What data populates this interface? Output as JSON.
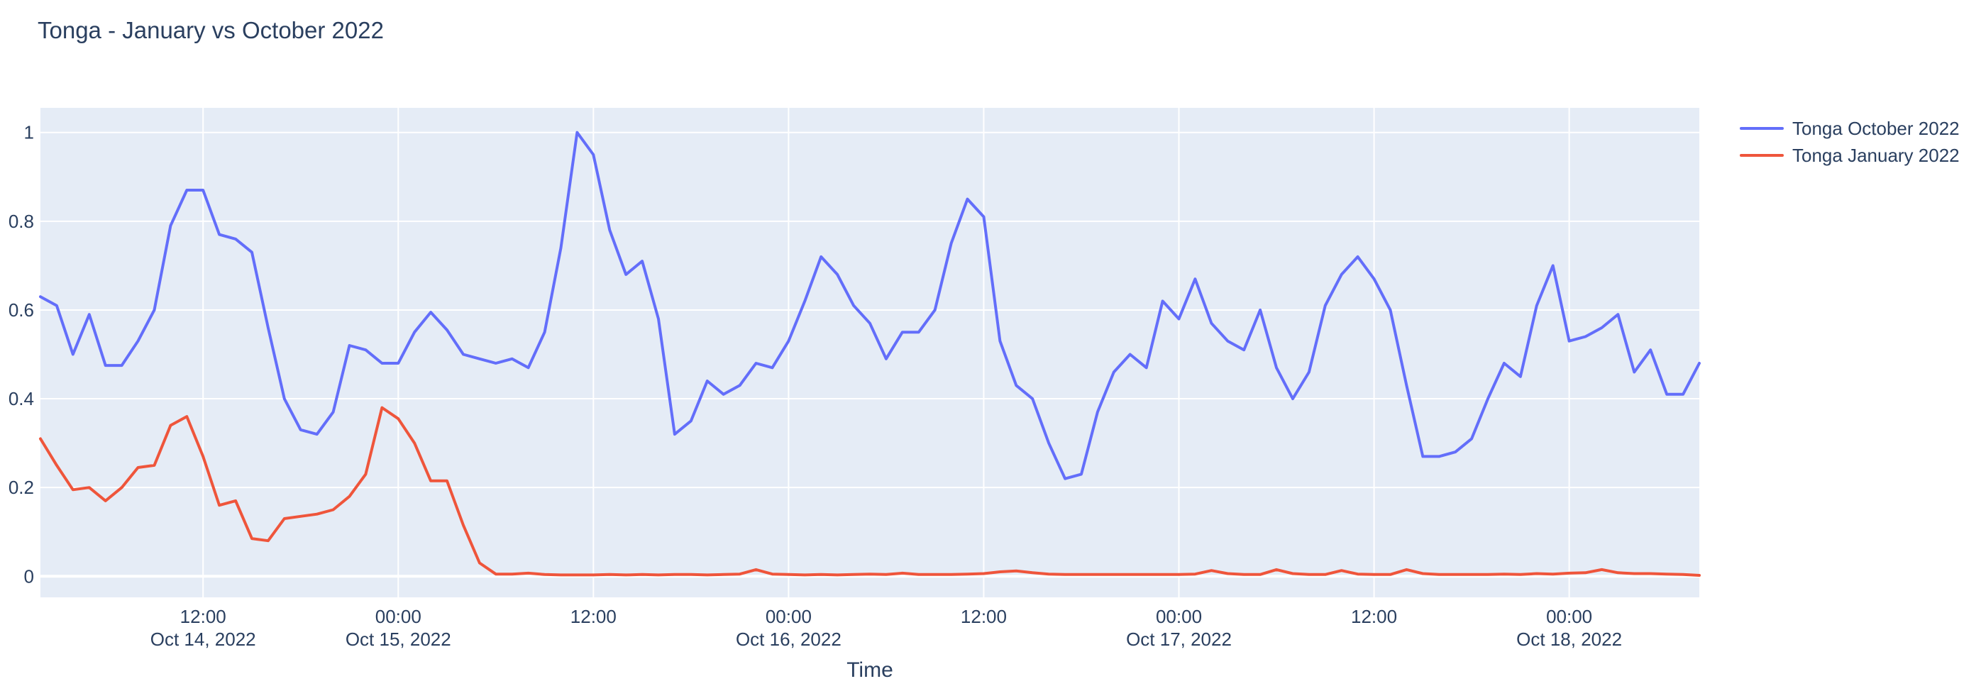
{
  "header": {
    "title": "Tonga - January vs October 2022"
  },
  "colors": {
    "text": "#2a3f5f",
    "plot_background": "#e5ecf6",
    "grid": "#ffffff",
    "series_october": "#636efa",
    "series_january": "#ef553b"
  },
  "chart_data": {
    "type": "line",
    "title": "Tonga - January vs October 2022",
    "xlabel": "Time",
    "ylabel": "",
    "grid": true,
    "legend_position": "top-right-outside",
    "ylim": [
      -0.0475,
      1.0555
    ],
    "yticks": [
      "0",
      "0.2",
      "0.4",
      "0.6",
      "0.8",
      "1"
    ],
    "ytick_values": [
      0,
      0.2,
      0.4,
      0.6,
      0.8,
      1
    ],
    "x_start": "2022-10-14 02:00",
    "x_end": "2022-10-18 08:00",
    "x_step_hours": 1,
    "n_points": 103,
    "xticks": [
      {
        "hour": 10,
        "time": "12:00",
        "date": "Oct 14, 2022"
      },
      {
        "hour": 22,
        "time": "00:00",
        "date": "Oct 15, 2022"
      },
      {
        "hour": 34,
        "time": "12:00",
        "date": ""
      },
      {
        "hour": 46,
        "time": "00:00",
        "date": "Oct 16, 2022"
      },
      {
        "hour": 58,
        "time": "12:00",
        "date": ""
      },
      {
        "hour": 70,
        "time": "00:00",
        "date": "Oct 17, 2022"
      },
      {
        "hour": 82,
        "time": "12:00",
        "date": ""
      },
      {
        "hour": 94,
        "time": "00:00",
        "date": "Oct 18, 2022"
      }
    ],
    "series": [
      {
        "name": "Tonga October 2022",
        "color": "#636efa",
        "values": [
          0.63,
          0.61,
          0.5,
          0.59,
          0.475,
          0.475,
          0.53,
          0.6,
          0.79,
          0.87,
          0.87,
          0.77,
          0.76,
          0.73,
          0.56,
          0.4,
          0.33,
          0.32,
          0.37,
          0.52,
          0.51,
          0.48,
          0.48,
          0.55,
          0.595,
          0.555,
          0.5,
          0.49,
          0.48,
          0.49,
          0.47,
          0.55,
          0.74,
          1.0,
          0.95,
          0.78,
          0.68,
          0.71,
          0.58,
          0.32,
          0.35,
          0.44,
          0.41,
          0.43,
          0.48,
          0.47,
          0.53,
          0.62,
          0.72,
          0.68,
          0.61,
          0.57,
          0.49,
          0.55,
          0.55,
          0.6,
          0.75,
          0.85,
          0.81,
          0.53,
          0.43,
          0.4,
          0.3,
          0.22,
          0.23,
          0.37,
          0.46,
          0.5,
          0.47,
          0.62,
          0.58,
          0.67,
          0.57,
          0.53,
          0.51,
          0.6,
          0.47,
          0.4,
          0.46,
          0.61,
          0.68,
          0.72,
          0.67,
          0.6,
          0.43,
          0.27,
          0.27,
          0.28,
          0.31,
          0.4,
          0.48,
          0.45,
          0.61,
          0.7,
          0.53,
          0.54,
          0.56,
          0.59,
          0.46,
          0.51,
          0.41,
          0.41,
          0.48
        ]
      },
      {
        "name": "Tonga January 2022",
        "color": "#ef553b",
        "values": [
          0.31,
          0.25,
          0.195,
          0.2,
          0.17,
          0.2,
          0.245,
          0.25,
          0.34,
          0.36,
          0.27,
          0.16,
          0.17,
          0.085,
          0.08,
          0.13,
          0.135,
          0.14,
          0.15,
          0.18,
          0.23,
          0.38,
          0.355,
          0.3,
          0.215,
          0.215,
          0.115,
          0.03,
          0.005,
          0.005,
          0.007,
          0.004,
          0.003,
          0.003,
          0.003,
          0.004,
          0.003,
          0.004,
          0.003,
          0.004,
          0.004,
          0.003,
          0.004,
          0.005,
          0.015,
          0.005,
          0.004,
          0.003,
          0.004,
          0.003,
          0.004,
          0.005,
          0.004,
          0.007,
          0.004,
          0.004,
          0.004,
          0.005,
          0.006,
          0.01,
          0.012,
          0.008,
          0.005,
          0.004,
          0.004,
          0.004,
          0.004,
          0.004,
          0.004,
          0.004,
          0.004,
          0.005,
          0.013,
          0.006,
          0.004,
          0.004,
          0.015,
          0.006,
          0.004,
          0.004,
          0.013,
          0.005,
          0.004,
          0.004,
          0.015,
          0.006,
          0.004,
          0.004,
          0.004,
          0.004,
          0.005,
          0.004,
          0.006,
          0.005,
          0.007,
          0.008,
          0.015,
          0.008,
          0.006,
          0.006,
          0.005,
          0.004,
          0.002
        ]
      }
    ]
  }
}
